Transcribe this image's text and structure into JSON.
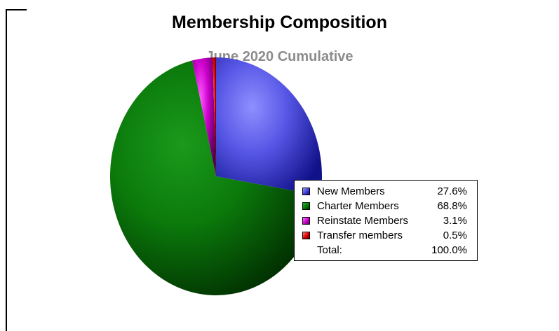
{
  "title": "Membership Composition",
  "subtitle": "June 2020 Cumulative",
  "chart_data": {
    "type": "pie",
    "title": "Membership Composition",
    "subtitle": "June 2020 Cumulative",
    "categories": [
      "New Members",
      "Charter Members",
      "Reinstate Members",
      "Transfer members"
    ],
    "values": [
      27.6,
      68.8,
      3.1,
      0.5
    ],
    "value_labels": [
      "27.6%",
      "68.8%",
      "3.1%",
      "0.5%"
    ],
    "colors": [
      "#3f3fd9",
      "#007a00",
      "#cc00cc",
      "#dd0000"
    ],
    "total_label": "Total:",
    "total_value": "100.0%",
    "legend_position": "right",
    "unit": "%"
  },
  "legend": {
    "items": [
      {
        "label": "New Members",
        "value": "27.6%",
        "color": "#3f3fd9"
      },
      {
        "label": "Charter Members",
        "value": "68.8%",
        "color": "#007a00"
      },
      {
        "label": "Reinstate Members",
        "value": "3.1%",
        "color": "#cc00cc"
      },
      {
        "label": "Transfer members",
        "value": "0.5%",
        "color": "#dd0000"
      }
    ],
    "total_label": "Total:",
    "total_value": "100.0%"
  }
}
